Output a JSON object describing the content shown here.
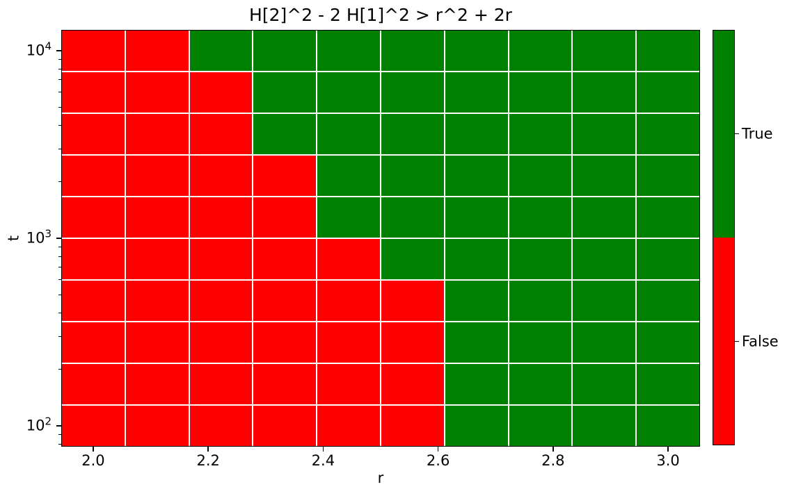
{
  "chart_data": {
    "type": "heatmap",
    "title": "H[2]^2 - 2 H[1]^2 > r^2 + 2r",
    "xlabel": "r",
    "ylabel": "t",
    "x_scale": "linear",
    "y_scale": "log",
    "x_range": [
      1.9444,
      3.0556
    ],
    "y_range": [
      77.4,
      12915
    ],
    "x_centers": [
      2.0,
      2.111,
      2.222,
      2.333,
      2.444,
      2.556,
      2.667,
      2.778,
      2.889,
      3.0
    ],
    "y_centers_top_to_bottom": [
      10000,
      5995,
      3594,
      2154,
      1292,
      774,
      464,
      278,
      167,
      100
    ],
    "rows_top_to_bottom": [
      [
        false,
        false,
        true,
        true,
        true,
        true,
        true,
        true,
        true,
        true
      ],
      [
        false,
        false,
        false,
        true,
        true,
        true,
        true,
        true,
        true,
        true
      ],
      [
        false,
        false,
        false,
        true,
        true,
        true,
        true,
        true,
        true,
        true
      ],
      [
        false,
        false,
        false,
        false,
        true,
        true,
        true,
        true,
        true,
        true
      ],
      [
        false,
        false,
        false,
        false,
        true,
        true,
        true,
        true,
        true,
        true
      ],
      [
        false,
        false,
        false,
        false,
        false,
        true,
        true,
        true,
        true,
        true
      ],
      [
        false,
        false,
        false,
        false,
        false,
        false,
        true,
        true,
        true,
        true
      ],
      [
        false,
        false,
        false,
        false,
        false,
        false,
        true,
        true,
        true,
        true
      ],
      [
        false,
        false,
        false,
        false,
        false,
        false,
        true,
        true,
        true,
        true
      ],
      [
        false,
        false,
        false,
        false,
        false,
        false,
        true,
        true,
        true,
        true
      ]
    ],
    "cell_colors": {
      "true": "#008000",
      "false": "#ff0000"
    },
    "grid_line_color": "#ffffff",
    "x_tick_labels": [
      "2.0",
      "2.2",
      "2.4",
      "2.6",
      "2.8",
      "3.0"
    ],
    "x_tick_values": [
      2.0,
      2.2,
      2.4,
      2.6,
      2.8,
      3.0
    ],
    "y_tick_exponents": [
      4,
      3,
      2
    ],
    "y_tick_base": "10",
    "colorbar": {
      "true_label": "True",
      "false_label": "False",
      "true_color": "#008000",
      "false_color": "#ff0000"
    }
  }
}
